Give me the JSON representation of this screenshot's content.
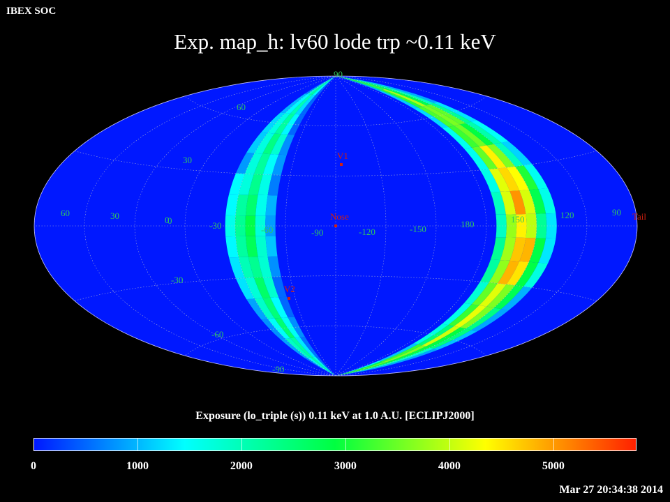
{
  "header": {
    "org": "IBEX SOC",
    "title": "Exp.   map_h: lv60 lode trp ~0.11 keV"
  },
  "map": {
    "projection": "Aitoff",
    "background_color": "#0018ff",
    "lat_labels": [
      "90",
      "60",
      "30",
      "0",
      "-30",
      "-60",
      "-90"
    ],
    "lon_labels": [
      "60",
      "30",
      "0",
      "-30",
      "-60",
      "-90",
      "-120",
      "-150",
      "180",
      "150",
      "120",
      "90"
    ],
    "markers": [
      {
        "label": "V1"
      },
      {
        "label": "Nose"
      },
      {
        "label": "V2"
      },
      {
        "label": "Tail"
      }
    ],
    "marker_color": "#d02010"
  },
  "colorbar": {
    "title": "Exposure (lo_triple (s))  0.11 keV at 1.0 A.U. [ECLIPJ2000]",
    "range": [
      0,
      5800
    ],
    "ticks": [
      "0",
      "1000",
      "2000",
      "3000",
      "4000",
      "5000"
    ],
    "tick_values": [
      0,
      1000,
      2000,
      3000,
      4000,
      5000
    ],
    "colors": [
      "#0018ff",
      "#00ffff",
      "#00ff40",
      "#ffff00",
      "#ff2000"
    ]
  },
  "footer": {
    "timestamp": "Mar 27 20:34:38 2014"
  }
}
